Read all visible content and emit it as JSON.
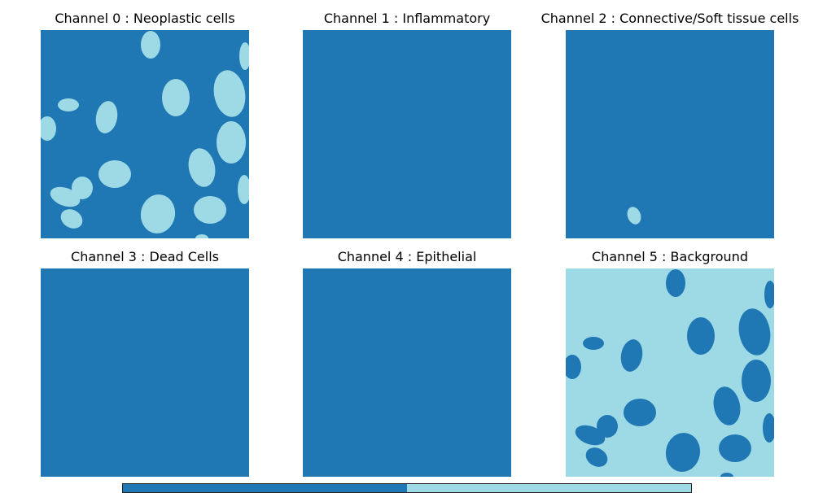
{
  "colors": {
    "class_0": "#1f77b4",
    "class_1": "#9edae5"
  },
  "panels": [
    {
      "title": "Channel 0 : Neoplastic cells",
      "mask": "neoplastic"
    },
    {
      "title": "Channel 1 : Inflammatory",
      "mask": "empty"
    },
    {
      "title": "Channel 2 : Connective/Soft tissue cells",
      "mask": "connective"
    },
    {
      "title": "Channel 3 : Dead Cells",
      "mask": "empty"
    },
    {
      "title": "Channel 4 : Epithelial",
      "mask": "empty"
    },
    {
      "title": "Channel 5 : Background",
      "mask": "background"
    }
  ],
  "chart_data": {
    "type": "heatmap",
    "layout": "2x3 grid of binary segmentation masks",
    "values": [
      0,
      1
    ],
    "colorbar": {
      "colors": [
        "#1f77b4",
        "#9edae5"
      ],
      "ticks_shown": false
    }
  }
}
